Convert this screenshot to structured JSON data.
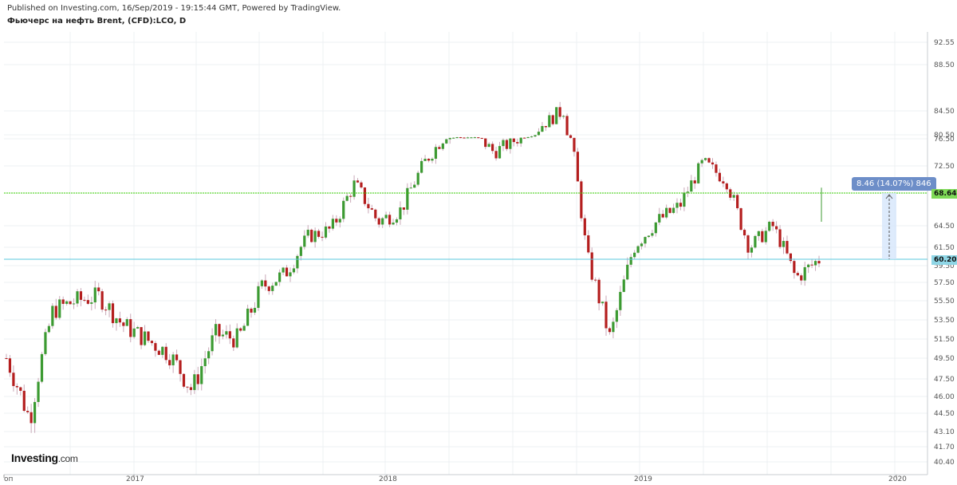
{
  "header": {
    "published": "Published on Investing.com, 16/Sep/2019 - 19:15:44 GMT, Powered by TradingView.",
    "title": "Фьючерс на нефть Brent, (CFD):LCO, D"
  },
  "brand": {
    "name": "Investing",
    "suffix": ".com"
  },
  "measure_label": "8.46 (14.07%) 846",
  "price_tags": {
    "upper": "68.64",
    "lower": "60.20"
  },
  "chart_data": {
    "type": "line",
    "title": "Фьючерс на нефть Brent, (CFD):LCO, D",
    "y_ticks": [
      "92.55",
      "88.50",
      "84.50",
      "80.50",
      "76.50",
      "72.50",
      "68.64",
      "64.50",
      "61.50",
      "59.50",
      "57.50",
      "55.50",
      "53.50",
      "51.50",
      "49.50",
      "47.50",
      "46.00",
      "44.50",
      "43.10",
      "41.70",
      "40.40"
    ],
    "x_ticks": [
      "оп",
      "2017",
      "2018",
      "2019",
      "2020"
    ],
    "ylim": [
      40.4,
      92.55
    ],
    "horizontal_lines": [
      {
        "value": 68.64,
        "color": "#39d000"
      },
      {
        "value": 60.2,
        "color": "#5bc8dd"
      }
    ],
    "series": [
      {
        "x": [
          "2016-10",
          "2016-11",
          "2016-12",
          "2017-01",
          "2017-02",
          "2017-03",
          "2017-04",
          "2017-05",
          "2017-06",
          "2017-07",
          "2017-08",
          "2017-09",
          "2017-10",
          "2017-11",
          "2017-12",
          "2018-01",
          "2018-02",
          "2018-03",
          "2018-04",
          "2018-05",
          "2018-06",
          "2018-07",
          "2018-08",
          "2018-09",
          "2018-10",
          "2018-11",
          "2018-12",
          "2019-01",
          "2019-02",
          "2019-03",
          "2019-04",
          "2019-05",
          "2019-06",
          "2019-07",
          "2019-08",
          "2019-09"
        ],
        "values": [
          49.5,
          44.0,
          54.5,
          55.5,
          56.0,
          53.0,
          51.5,
          50.0,
          46.5,
          52.0,
          51.5,
          57.0,
          58.5,
          63.0,
          64.0,
          70.0,
          65.0,
          66.5,
          73.0,
          77.5,
          78.0,
          74.5,
          76.5,
          82.0,
          84.5,
          60.5,
          51.5,
          61.5,
          65.0,
          67.0,
          73.0,
          70.5,
          61.5,
          64.5,
          58.0,
          60.2
        ]
      }
    ],
    "colors": {
      "up": "#3c9a32",
      "down": "#b41e1e"
    }
  }
}
